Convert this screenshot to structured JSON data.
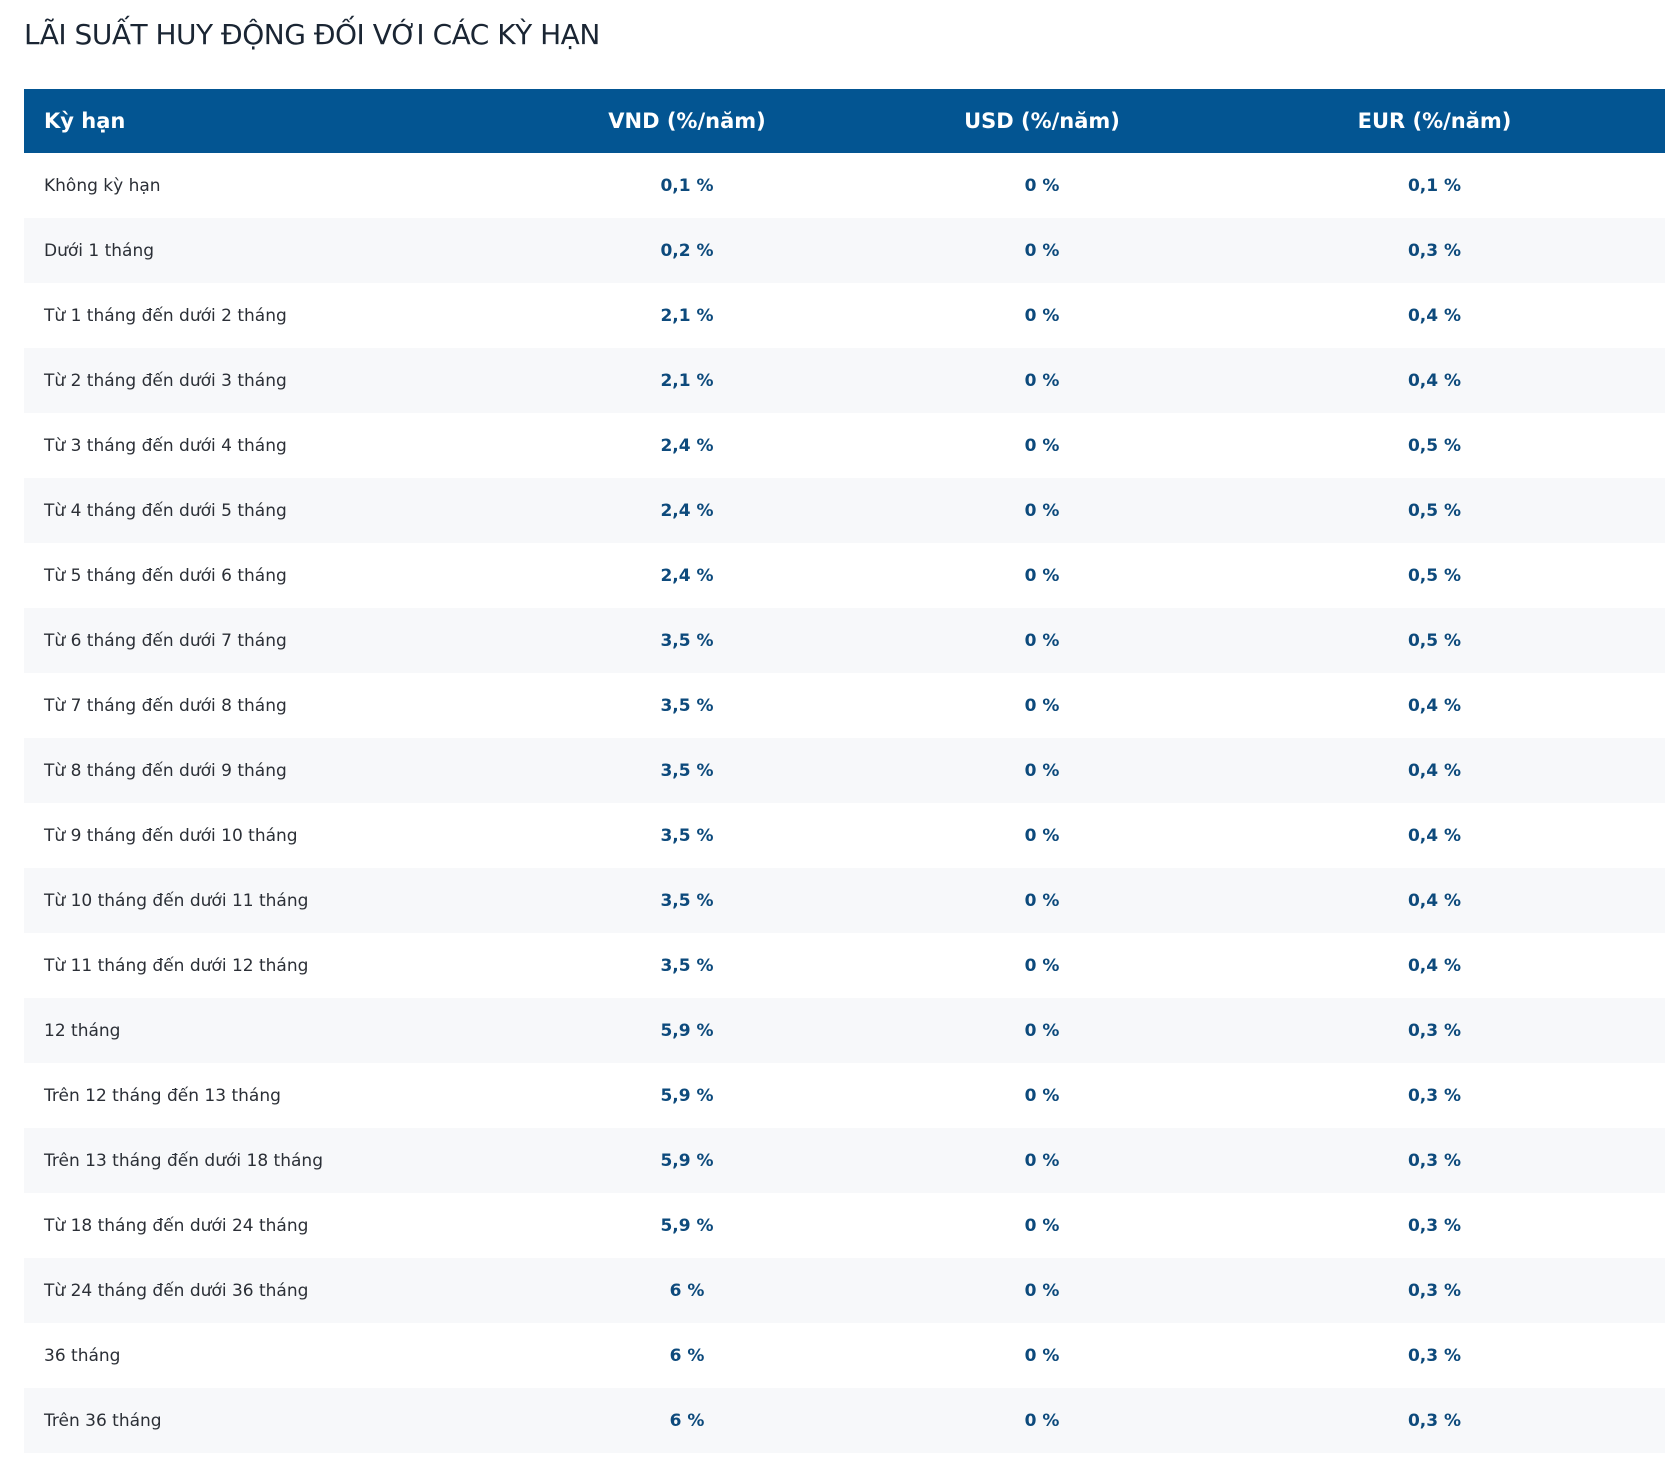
{
  "title": "LÃI SUẤT HUY ĐỘNG ĐỐI VỚI CÁC KỲ HẠN",
  "table": {
    "headers": [
      "Kỳ hạn",
      "VND (%/năm)",
      "USD (%/năm)",
      "EUR (%/năm)"
    ],
    "rows": [
      [
        "Không kỳ hạn",
        "0,1 %",
        "0 %",
        "0,1 %"
      ],
      [
        "Dưới 1 tháng",
        "0,2 %",
        "0 %",
        "0,3 %"
      ],
      [
        "Từ 1 tháng đến dưới 2 tháng",
        "2,1 %",
        "0 %",
        "0,4 %"
      ],
      [
        "Từ 2 tháng đến dưới 3 tháng",
        "2,1 %",
        "0 %",
        "0,4 %"
      ],
      [
        "Từ 3 tháng đến dưới 4 tháng",
        "2,4 %",
        "0 %",
        "0,5 %"
      ],
      [
        "Từ 4 tháng đến dưới 5 tháng",
        "2,4 %",
        "0 %",
        "0,5 %"
      ],
      [
        "Từ 5 tháng đến dưới 6 tháng",
        "2,4 %",
        "0 %",
        "0,5 %"
      ],
      [
        "Từ 6 tháng đến dưới 7 tháng",
        "3,5 %",
        "0 %",
        "0,5 %"
      ],
      [
        "Từ 7 tháng đến dưới 8 tháng",
        "3,5 %",
        "0 %",
        "0,4 %"
      ],
      [
        "Từ 8 tháng đến dưới 9 tháng",
        "3,5 %",
        "0 %",
        "0,4 %"
      ],
      [
        "Từ 9 tháng đến dưới 10 tháng",
        "3,5 %",
        "0 %",
        "0,4 %"
      ],
      [
        "Từ 10 tháng đến dưới 11 tháng",
        "3,5 %",
        "0 %",
        "0,4 %"
      ],
      [
        "Từ 11 tháng đến dưới 12 tháng",
        "3,5 %",
        "0 %",
        "0,4 %"
      ],
      [
        "12 tháng",
        "5,9 %",
        "0 %",
        "0,3 %"
      ],
      [
        "Trên 12 tháng đến 13 tháng",
        "5,9 %",
        "0 %",
        "0,3 %"
      ],
      [
        "Trên 13 tháng đến dưới 18 tháng",
        "5,9 %",
        "0 %",
        "0,3 %"
      ],
      [
        "Từ 18 tháng đến dưới 24 tháng",
        "5,9 %",
        "0 %",
        "0,3 %"
      ],
      [
        "Từ 24 tháng đến dưới 36 tháng",
        "6 %",
        "0 %",
        "0,3 %"
      ],
      [
        "36 tháng",
        "6 %",
        "0 %",
        "0,3 %"
      ],
      [
        "Trên 36 tháng",
        "6 %",
        "0 %",
        "0,3 %"
      ]
    ]
  }
}
